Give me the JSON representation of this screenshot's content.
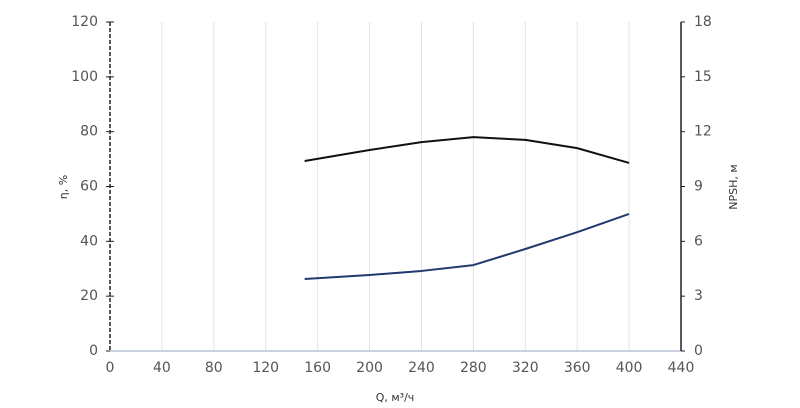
{
  "chart_data": {
    "type": "line",
    "x_label": "Q, м³/ч",
    "y_label": "η, %",
    "y2_label": "NPSH, м",
    "x": [
      150,
      200,
      240,
      280,
      320,
      360,
      400
    ],
    "series": [
      {
        "color": "#111111",
        "values": [
          69.3,
          73.3,
          76.2,
          78,
          77,
          74,
          68.6
        ]
      },
      {
        "color": "#1f3a6e",
        "axis": "y2",
        "values": [
          3.94,
          4.16,
          4.38,
          4.7,
          5.58,
          6.5,
          7.5
        ]
      }
    ],
    "xlim": [
      0,
      440
    ],
    "xticks": [
      0,
      40,
      80,
      120,
      160,
      200,
      240,
      280,
      320,
      360,
      400,
      440
    ],
    "ylim": [
      0,
      120
    ],
    "yticks": [
      0,
      20,
      40,
      60,
      80,
      100,
      120
    ],
    "y2lim": [
      0,
      18
    ],
    "y2ticks": [
      0,
      3,
      6,
      9,
      12,
      15,
      18
    ],
    "grid": "x"
  }
}
